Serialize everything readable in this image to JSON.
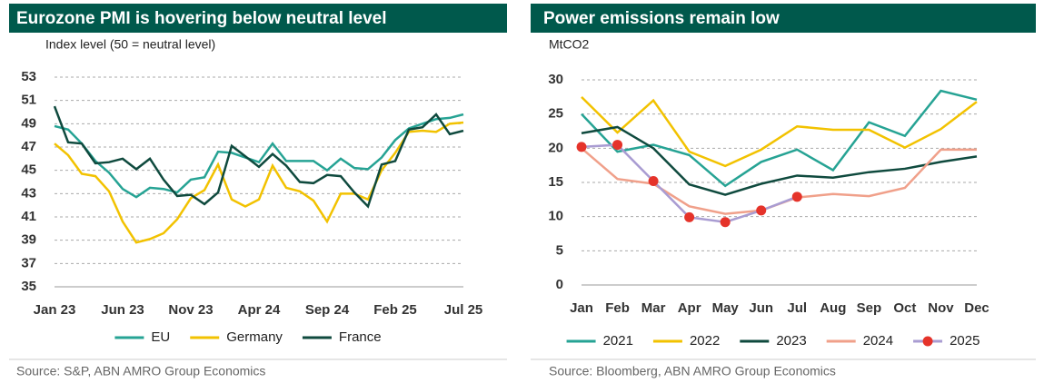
{
  "chart_data": [
    {
      "type": "line",
      "title": "Eurozone PMI is hovering below neutral level",
      "y_label": "Index level (50 = neutral level)",
      "categories": [
        "Jan 23",
        null,
        null,
        null,
        null,
        "Jun 23",
        null,
        null,
        null,
        null,
        "Nov 23",
        null,
        null,
        null,
        null,
        "Apr 24",
        null,
        null,
        null,
        null,
        "Sep 24",
        null,
        null,
        null,
        null,
        "Feb 25",
        null,
        null,
        null,
        null,
        "Jul 25"
      ],
      "series": [
        {
          "name": "EU",
          "color": "#26a394",
          "values": [
            48.8,
            48.5,
            47.3,
            45.8,
            44.8,
            43.4,
            42.7,
            43.5,
            43.4,
            43.1,
            44.2,
            44.4,
            46.6,
            46.5,
            46.1,
            45.7,
            47.3,
            45.8,
            45.8,
            45.8,
            45.0,
            46.0,
            45.2,
            45.1,
            46.1,
            47.6,
            48.6,
            49.0,
            49.4,
            49.5,
            49.8
          ]
        },
        {
          "name": "Germany",
          "color": "#f2c200",
          "values": [
            47.3,
            46.3,
            44.7,
            44.5,
            43.2,
            40.6,
            38.8,
            39.1,
            39.6,
            40.8,
            42.6,
            43.3,
            45.5,
            42.5,
            41.9,
            42.5,
            45.4,
            43.5,
            43.2,
            42.4,
            40.6,
            43.0,
            43.0,
            42.5,
            45.0,
            46.5,
            48.3,
            48.4,
            48.3,
            49.0,
            49.1
          ]
        },
        {
          "name": "France",
          "color": "#0f4a3e",
          "values": [
            50.5,
            47.4,
            47.3,
            45.6,
            45.7,
            46.0,
            45.1,
            46.0,
            44.2,
            42.8,
            42.9,
            42.1,
            43.1,
            47.1,
            46.2,
            45.3,
            46.4,
            45.4,
            44.0,
            43.9,
            44.6,
            44.5,
            43.1,
            41.9,
            45.5,
            45.8,
            48.5,
            48.7,
            49.8,
            48.1,
            48.4
          ]
        }
      ],
      "ylim": [
        35,
        53
      ],
      "yticks": [
        35,
        37,
        39,
        41,
        43,
        45,
        47,
        49,
        51,
        53
      ],
      "grid": true,
      "source": "Source: S&P, ABN AMRO Group Economics"
    },
    {
      "type": "line",
      "title": "Power emissions remain low",
      "y_label": "MtCO2",
      "categories": [
        "Jan",
        "Feb",
        "Mar",
        "Apr",
        "May",
        "Jun",
        "Jul",
        "Aug",
        "Sep",
        "Oct",
        "Nov",
        "Dec"
      ],
      "series": [
        {
          "name": "2021",
          "color": "#26a394",
          "values": [
            25,
            19.5,
            20.5,
            19,
            14.5,
            18,
            19.8,
            16.8,
            23.8,
            21.8,
            28.4,
            27.1
          ]
        },
        {
          "name": "2022",
          "color": "#f2c200",
          "values": [
            27.5,
            22.3,
            27,
            19.5,
            17.4,
            19.8,
            23.2,
            22.7,
            22.7,
            20.1,
            22.8,
            26.8
          ]
        },
        {
          "name": "2023",
          "color": "#0f4a3e",
          "values": [
            22.2,
            23.1,
            20,
            14.7,
            13.2,
            14.8,
            16,
            15.7,
            16.5,
            17,
            18,
            18.8
          ]
        },
        {
          "name": "2024",
          "color": "#f0a08a",
          "values": [
            20,
            15.5,
            14.8,
            11.5,
            10.4,
            10.9,
            12.8,
            13.3,
            13,
            14.2,
            19.8,
            19.8
          ]
        },
        {
          "name": "2025",
          "color": "#a99cd2",
          "marker_color": "#e5332a",
          "values": [
            20.2,
            20.5,
            15.2,
            9.9,
            9.2,
            10.9,
            12.9,
            null,
            null,
            null,
            null,
            null
          ]
        }
      ],
      "ylim": [
        0,
        30
      ],
      "yticks": [
        0,
        5,
        10,
        15,
        20,
        25,
        30
      ],
      "grid": true,
      "source": "Source: Bloomberg, ABN AMRO Group Economics"
    }
  ]
}
